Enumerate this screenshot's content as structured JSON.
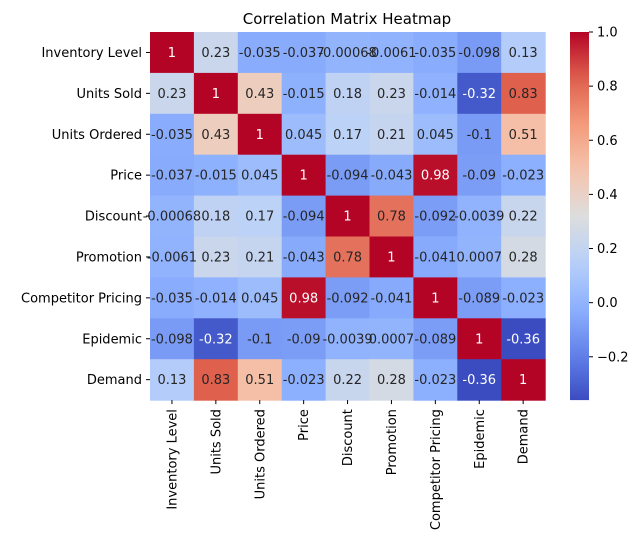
{
  "chart_data": {
    "type": "heatmap",
    "title": "Correlation Matrix Heatmap",
    "labels": [
      "Inventory Level",
      "Units Sold",
      "Units Ordered",
      "Price",
      "Discount",
      "Promotion",
      "Competitor Pricing",
      "Epidemic",
      "Demand"
    ],
    "values": [
      [
        1,
        0.23,
        -0.035,
        -0.037,
        -0.00068,
        -0.0061,
        -0.035,
        -0.098,
        0.13
      ],
      [
        0.23,
        1,
        0.43,
        -0.015,
        0.18,
        0.23,
        -0.014,
        -0.32,
        0.83
      ],
      [
        -0.035,
        0.43,
        1,
        0.045,
        0.17,
        0.21,
        0.045,
        -0.1,
        0.51
      ],
      [
        -0.037,
        -0.015,
        0.045,
        1,
        -0.094,
        -0.043,
        0.98,
        -0.09,
        -0.023
      ],
      [
        -0.00068,
        0.18,
        0.17,
        -0.094,
        1,
        0.78,
        -0.092,
        -0.0039,
        0.22
      ],
      [
        -0.0061,
        0.23,
        0.21,
        -0.043,
        0.78,
        1,
        -0.041,
        0.0007,
        0.28
      ],
      [
        -0.035,
        -0.014,
        0.045,
        0.98,
        -0.092,
        -0.041,
        1,
        -0.089,
        -0.023
      ],
      [
        -0.098,
        -0.32,
        -0.1,
        -0.09,
        -0.0039,
        0.0007,
        -0.089,
        1,
        -0.36
      ],
      [
        0.13,
        0.83,
        0.51,
        -0.023,
        0.22,
        0.28,
        -0.023,
        -0.36,
        1
      ]
    ],
    "annotations": [
      [
        "1",
        "0.23",
        "-0.035",
        "-0.037",
        "-0.00068",
        "-0.0061",
        "-0.035",
        "-0.098",
        "0.13"
      ],
      [
        "0.23",
        "1",
        "0.43",
        "-0.015",
        "0.18",
        "0.23",
        "-0.014",
        "-0.32",
        "0.83"
      ],
      [
        "-0.035",
        "0.43",
        "1",
        "0.045",
        "0.17",
        "0.21",
        "0.045",
        "-0.1",
        "0.51"
      ],
      [
        "-0.037",
        "-0.015",
        "0.045",
        "1",
        "-0.094",
        "-0.043",
        "0.98",
        "-0.09",
        "-0.023"
      ],
      [
        "-0.00068",
        "0.18",
        "0.17",
        "-0.094",
        "1",
        "0.78",
        "-0.092",
        "-0.0039",
        "0.22"
      ],
      [
        "-0.0061",
        "0.23",
        "0.21",
        "-0.043",
        "0.78",
        "1",
        "-0.041",
        "0.0007",
        "0.28"
      ],
      [
        "-0.035",
        "-0.014",
        "0.045",
        "0.98",
        "-0.092",
        "-0.041",
        "1",
        "-0.089",
        "-0.023"
      ],
      [
        "-0.098",
        "-0.32",
        "-0.1",
        "-0.09",
        "-0.0039",
        "0.0007",
        "-0.089",
        "1",
        "-0.36"
      ],
      [
        "0.13",
        "0.83",
        "0.51",
        "-0.023",
        "0.22",
        "0.28",
        "-0.023",
        "-0.36",
        "1"
      ]
    ],
    "colormap": "coolwarm",
    "colorbar": {
      "min": -0.36,
      "max": 1,
      "ticks": [
        -0.2,
        0,
        0.2,
        0.4,
        0.6,
        0.8,
        1.0
      ],
      "tick_labels": [
        "−0.2",
        "0.0",
        "0.2",
        "0.4",
        "0.6",
        "0.8",
        "1.0"
      ]
    }
  }
}
